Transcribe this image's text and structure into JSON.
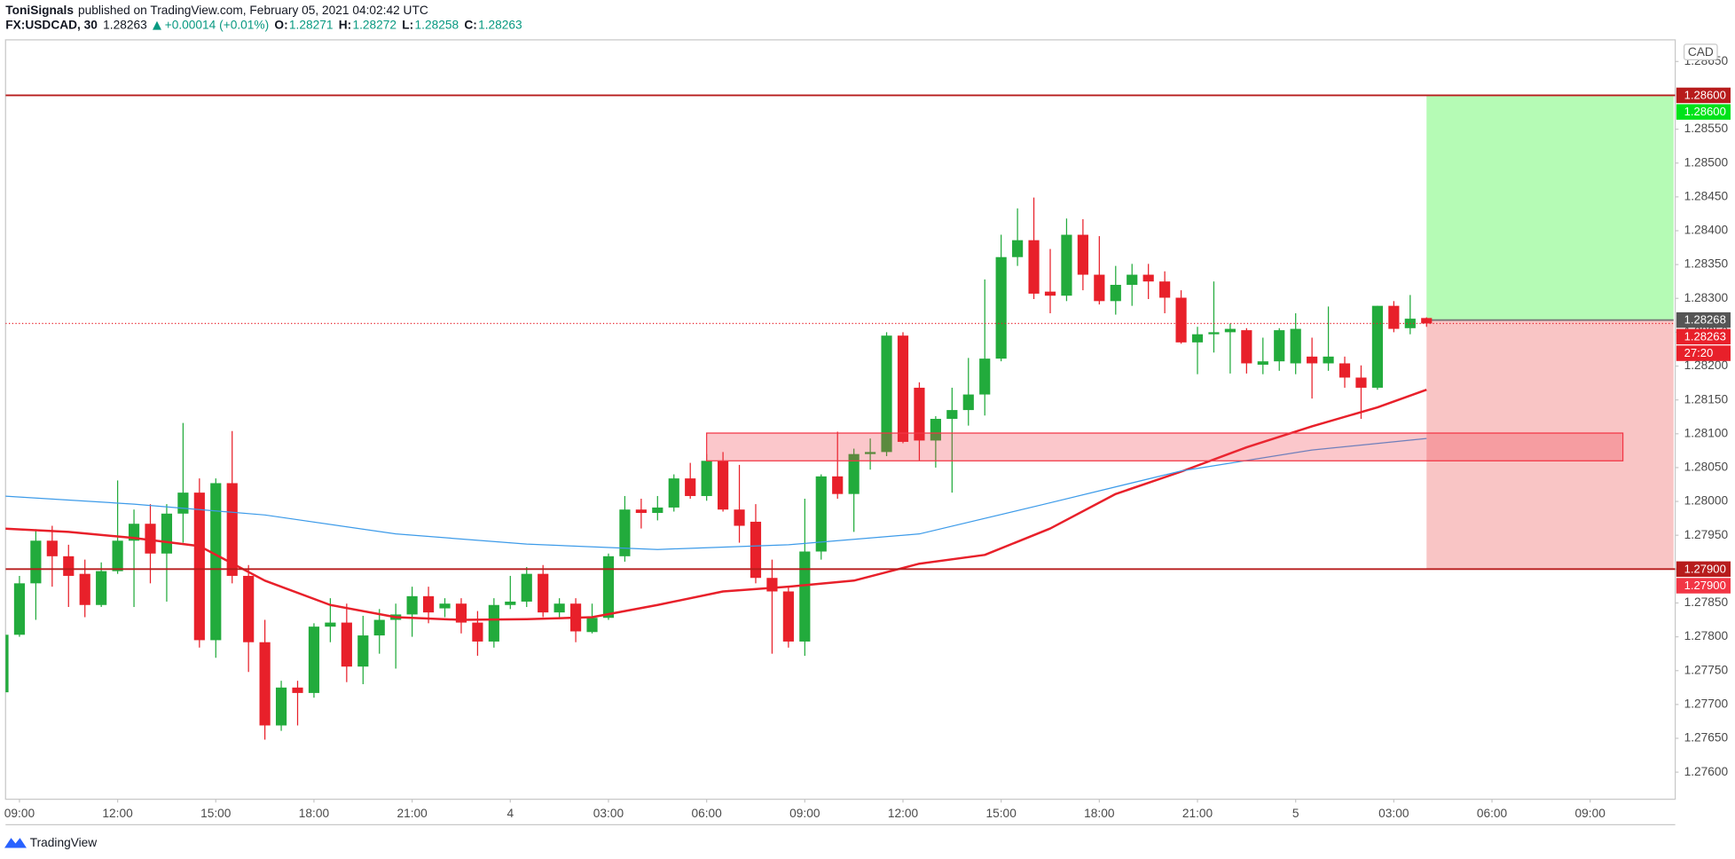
{
  "header": {
    "author": "ToniSignals",
    "published": "published on TradingView.com, February 05, 2021 04:02:42 UTC",
    "symbol": "FX:USDCAD, 30",
    "last": "1.28263",
    "change": "+0.00014 (+0.01%)",
    "ohlc": [
      {
        "label": "O:",
        "value": "1.28271"
      },
      {
        "label": "H:",
        "value": "1.28272"
      },
      {
        "label": "L:",
        "value": "1.28258"
      },
      {
        "label": "C:",
        "value": "1.28263"
      }
    ]
  },
  "currency": "CAD",
  "footer": {
    "brand": "TradingView"
  },
  "chart_data": {
    "type": "candlestick",
    "up_color": "#22ab3c",
    "down_color": "#e8202a",
    "grid": false,
    "xlim": [
      0.15,
      102.2
    ],
    "ylim": [
      1.2756,
      1.28682
    ],
    "xticks": [
      {
        "value": 1,
        "label": "09:00"
      },
      {
        "value": 7,
        "label": "12:00"
      },
      {
        "value": 13,
        "label": "15:00"
      },
      {
        "value": 19,
        "label": "18:00"
      },
      {
        "value": 25,
        "label": "21:00"
      },
      {
        "value": 31,
        "label": "4"
      },
      {
        "value": 37,
        "label": "03:00"
      },
      {
        "value": 43,
        "label": "06:00"
      },
      {
        "value": 49,
        "label": "09:00"
      },
      {
        "value": 55,
        "label": "12:00"
      },
      {
        "value": 61,
        "label": "15:00"
      },
      {
        "value": 67,
        "label": "18:00"
      },
      {
        "value": 73,
        "label": "21:00"
      },
      {
        "value": 79,
        "label": "5"
      },
      {
        "value": 85,
        "label": "03:00"
      },
      {
        "value": 91,
        "label": "06:00"
      },
      {
        "value": 97,
        "label": "09:00"
      }
    ],
    "yticks": [
      {
        "value": 1.276,
        "label": "1.27600"
      },
      {
        "value": 1.2765,
        "label": "1.27650"
      },
      {
        "value": 1.277,
        "label": "1.27700"
      },
      {
        "value": 1.2775,
        "label": "1.27750"
      },
      {
        "value": 1.278,
        "label": "1.27800"
      },
      {
        "value": 1.2785,
        "label": "1.27850"
      },
      {
        "value": 1.279,
        "label": "1.27900"
      },
      {
        "value": 1.2795,
        "label": "1.27950"
      },
      {
        "value": 1.28,
        "label": "1.28000"
      },
      {
        "value": 1.2805,
        "label": "1.28050"
      },
      {
        "value": 1.281,
        "label": "1.28100"
      },
      {
        "value": 1.2815,
        "label": "1.28150"
      },
      {
        "value": 1.282,
        "label": "1.28200"
      },
      {
        "value": 1.2825,
        "label": "1.28250"
      },
      {
        "value": 1.283,
        "label": "1.28300"
      },
      {
        "value": 1.2835,
        "label": "1.28350"
      },
      {
        "value": 1.284,
        "label": "1.28400"
      },
      {
        "value": 1.2845,
        "label": "1.28450"
      },
      {
        "value": 1.285,
        "label": "1.28500"
      },
      {
        "value": 1.2855,
        "label": "1.28550"
      },
      {
        "value": 1.2865,
        "label": "1.28650"
      }
    ],
    "open": [
      1.27718,
      1.27803,
      1.27879,
      1.27942,
      1.27919,
      1.27893,
      1.27847,
      1.27897,
      1.27942,
      1.27967,
      1.27923,
      1.27982,
      1.28013,
      1.27795,
      1.28027,
      1.2789,
      1.27792,
      1.27669,
      1.27725,
      1.27717,
      1.27815,
      1.27821,
      1.27756,
      1.27802,
      1.27825,
      1.27833,
      1.2786,
      1.27842,
      1.27849,
      1.27821,
      1.27793,
      1.27847,
      1.27852,
      1.27893,
      1.27836,
      1.27849,
      1.27807,
      1.27828,
      1.27919,
      1.27988,
      1.27983,
      1.27991,
      1.28034,
      1.28008,
      1.2806,
      1.27988,
      1.2797,
      1.27887,
      1.27867,
      1.27793,
      1.27926,
      1.28037,
      1.28011,
      1.2807,
      1.28073,
      1.28245,
      1.28168,
      1.2809,
      1.28122,
      1.28135,
      1.28158,
      1.28211,
      1.28361,
      1.28386,
      1.2831,
      1.28304,
      1.28394,
      1.28335,
      1.28296,
      1.2832,
      1.28335,
      1.28325,
      1.28301,
      1.28235,
      1.28247,
      1.2825,
      1.28253,
      1.28202,
      1.28207,
      1.28204,
      1.28214,
      1.28204,
      1.28204,
      1.28183,
      1.28168,
      1.28289,
      1.28256,
      1.28271
    ],
    "high": [
      1.27803,
      1.2789,
      1.27959,
      1.27964,
      1.27936,
      1.27914,
      1.2791,
      1.28031,
      1.27988,
      1.27996,
      1.27996,
      1.28116,
      1.28034,
      1.28034,
      1.28104,
      1.27906,
      1.27825,
      1.27735,
      1.27735,
      1.2782,
      1.27857,
      1.27849,
      1.27831,
      1.27841,
      1.27849,
      1.27874,
      1.27874,
      1.27857,
      1.27857,
      1.27838,
      1.27857,
      1.2789,
      1.27903,
      1.27906,
      1.27857,
      1.27857,
      1.27849,
      1.27923,
      1.28008,
      1.28004,
      1.28008,
      1.2804,
      1.28057,
      1.2807,
      1.28073,
      1.28054,
      1.27996,
      1.27914,
      1.27874,
      1.28004,
      1.2804,
      1.28103,
      1.28078,
      1.28093,
      1.2825,
      1.2825,
      1.28176,
      1.28126,
      1.28168,
      1.28212,
      1.28328,
      1.28394,
      1.28433,
      1.28449,
      1.28373,
      1.28418,
      1.28417,
      1.28392,
      1.28348,
      1.28351,
      1.28351,
      1.2834,
      1.28312,
      1.28258,
      1.28325,
      1.28263,
      1.28256,
      1.28242,
      1.28256,
      1.28278,
      1.28242,
      1.28288,
      1.28214,
      1.28201,
      1.28289,
      1.28296,
      1.28305,
      1.28272
    ],
    "low": [
      1.27718,
      1.278,
      1.27825,
      1.27874,
      1.27844,
      1.27829,
      1.27844,
      1.27893,
      1.27844,
      1.27879,
      1.27852,
      1.27939,
      1.27784,
      1.27769,
      1.27879,
      1.27748,
      1.27648,
      1.27661,
      1.27669,
      1.2771,
      1.27792,
      1.27733,
      1.2773,
      1.27775,
      1.27753,
      1.278,
      1.2782,
      1.27829,
      1.27805,
      1.27772,
      1.27784,
      1.27841,
      1.27844,
      1.27829,
      1.27829,
      1.27792,
      1.27805,
      1.27825,
      1.27911,
      1.2796,
      1.27972,
      1.27985,
      1.28004,
      1.28001,
      1.27985,
      1.27939,
      1.27879,
      1.27775,
      1.27784,
      1.27772,
      1.27914,
      1.28004,
      1.27955,
      1.28047,
      1.28067,
      1.28086,
      1.2806,
      1.2805,
      1.28013,
      1.28112,
      1.28127,
      1.28207,
      1.28348,
      1.28299,
      1.28278,
      1.28296,
      1.28312,
      1.28291,
      1.28276,
      1.28289,
      1.28299,
      1.28278,
      1.28233,
      1.28188,
      1.2822,
      1.28189,
      1.28189,
      1.28188,
      1.28193,
      1.28188,
      1.28152,
      1.28193,
      1.28168,
      1.28122,
      1.28165,
      1.2825,
      1.28247,
      1.28258
    ],
    "close": [
      1.27803,
      1.27879,
      1.27942,
      1.27919,
      1.2789,
      1.27847,
      1.27897,
      1.27942,
      1.27967,
      1.27923,
      1.27982,
      1.28013,
      1.27795,
      1.28027,
      1.2789,
      1.27792,
      1.27669,
      1.27725,
      1.27717,
      1.27815,
      1.27821,
      1.27756,
      1.27802,
      1.27825,
      1.27833,
      1.2786,
      1.27836,
      1.27849,
      1.27821,
      1.27793,
      1.27847,
      1.27852,
      1.27893,
      1.27836,
      1.27849,
      1.27808,
      1.27828,
      1.27919,
      1.27988,
      1.27983,
      1.27991,
      1.28034,
      1.28008,
      1.2806,
      1.27988,
      1.27964,
      1.27887,
      1.27867,
      1.27793,
      1.27926,
      1.28037,
      1.28011,
      1.2807,
      1.28073,
      1.28245,
      1.28088,
      1.2809,
      1.28122,
      1.28135,
      1.28158,
      1.28211,
      1.28361,
      1.28386,
      1.28307,
      1.28304,
      1.28394,
      1.28335,
      1.28296,
      1.2832,
      1.28335,
      1.28325,
      1.28301,
      1.28235,
      1.28247,
      1.2825,
      1.28255,
      1.28204,
      1.28207,
      1.28253,
      1.28255,
      1.28204,
      1.28214,
      1.28183,
      1.28168,
      1.28289,
      1.28255,
      1.2827,
      1.28263
    ],
    "lines": [
      {
        "color": "#e8202a",
        "width": 2,
        "x": [
          0,
          4,
          8,
          12,
          16,
          20,
          24,
          28,
          32,
          36,
          40,
          44,
          48,
          52,
          56,
          60,
          64,
          68,
          72,
          76,
          80,
          84,
          87
        ],
        "values": [
          1.2796,
          1.27955,
          1.27946,
          1.27934,
          1.27883,
          1.27847,
          1.27829,
          1.27825,
          1.27826,
          1.27829,
          1.27847,
          1.27867,
          1.27874,
          1.27883,
          1.27908,
          1.27921,
          1.2796,
          1.28011,
          1.28044,
          1.2808,
          1.28111,
          1.28139,
          1.28165
        ]
      },
      {
        "color": "#3d9be9",
        "width": 1,
        "x": [
          0,
          8,
          16,
          24,
          32,
          40,
          48,
          56,
          64,
          72,
          80,
          87
        ],
        "values": [
          1.28008,
          1.27996,
          1.2798,
          1.27952,
          1.27937,
          1.27929,
          1.27936,
          1.27952,
          1.27998,
          1.28045,
          1.28076,
          1.28093
        ]
      }
    ],
    "hlines": [
      {
        "value": 1.286,
        "label": "1.28600",
        "color": "#b71c1c"
      },
      {
        "value": 1.279,
        "label": "1.27900",
        "color": "#b71c1c"
      }
    ],
    "zone": {
      "x0": 43,
      "x1": 99,
      "top": 1.28101,
      "bottom": 1.2806,
      "color": "#f23645"
    },
    "position": {
      "x_start": 87,
      "x_end": 102.1,
      "entry": {
        "value": 1.28268,
        "label": "1.28268"
      },
      "target": {
        "value": 1.286,
        "label": "1.28600"
      },
      "stop": {
        "value": 1.279,
        "label": "1.27900"
      },
      "profit_color": "#b5fbb5",
      "loss_color": "#f9c5c5",
      "target_tag_color": "#00e21a",
      "stop_tag_color": "#f23645",
      "entry_tag_color": "#555555"
    },
    "last_price": {
      "value": 1.28263,
      "label": "1.28263",
      "countdown": "27:20",
      "color": "#e8202a"
    }
  }
}
